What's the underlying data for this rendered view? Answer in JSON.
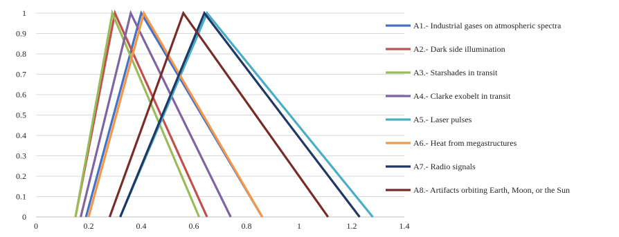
{
  "chart_data": {
    "type": "line",
    "title": "",
    "xlabel": "",
    "ylabel": "",
    "xlim": [
      0,
      1.4
    ],
    "ylim": [
      0,
      1
    ],
    "x_ticks": [
      "0",
      "0.2",
      "0.4",
      "0.6",
      "0.8",
      "1",
      "1.2",
      "1.4"
    ],
    "y_ticks": [
      "0",
      "0.1",
      "0.2",
      "0.3",
      "0.4",
      "0.5",
      "0.6",
      "0.7",
      "0.8",
      "0.9",
      "1"
    ],
    "grid": "horizontal",
    "legend_position": "right",
    "series": [
      {
        "name": "A1.- Industrial gases on atmospheric spectra",
        "color": "#4472C4",
        "x": [
          0.19,
          0.4,
          0.86
        ],
        "y": [
          0,
          1,
          0
        ]
      },
      {
        "name": "A2.- Dark side illumination",
        "color": "#C0504D",
        "x": [
          0.15,
          0.3,
          0.65
        ],
        "y": [
          0,
          1,
          0
        ]
      },
      {
        "name": "A3.- Starshades in transit",
        "color": "#9BBB59",
        "x": [
          0.15,
          0.29,
          0.62
        ],
        "y": [
          0,
          1,
          0
        ]
      },
      {
        "name": "A4.- Clarke exobelt in transit",
        "color": "#8064A2",
        "x": [
          0.17,
          0.36,
          0.74
        ],
        "y": [
          0,
          1,
          0
        ]
      },
      {
        "name": "A5.- Laser pulses",
        "color": "#4BACC6",
        "x": [
          0.32,
          0.65,
          1.28
        ],
        "y": [
          0,
          1,
          0
        ]
      },
      {
        "name": "A6.- Heat from megastructures",
        "color": "#F79646",
        "x": [
          0.2,
          0.41,
          0.86
        ],
        "y": [
          0,
          1,
          0
        ]
      },
      {
        "name": "A7.- Radio signals",
        "color": "#1F3864",
        "x": [
          0.32,
          0.64,
          1.23
        ],
        "y": [
          0,
          1,
          0
        ]
      },
      {
        "name": "A8.- Artifacts orbiting Earth, Moon, or the Sun",
        "color": "#772C2A",
        "x": [
          0.28,
          0.56,
          1.11
        ],
        "y": [
          0,
          1,
          0
        ]
      }
    ]
  }
}
